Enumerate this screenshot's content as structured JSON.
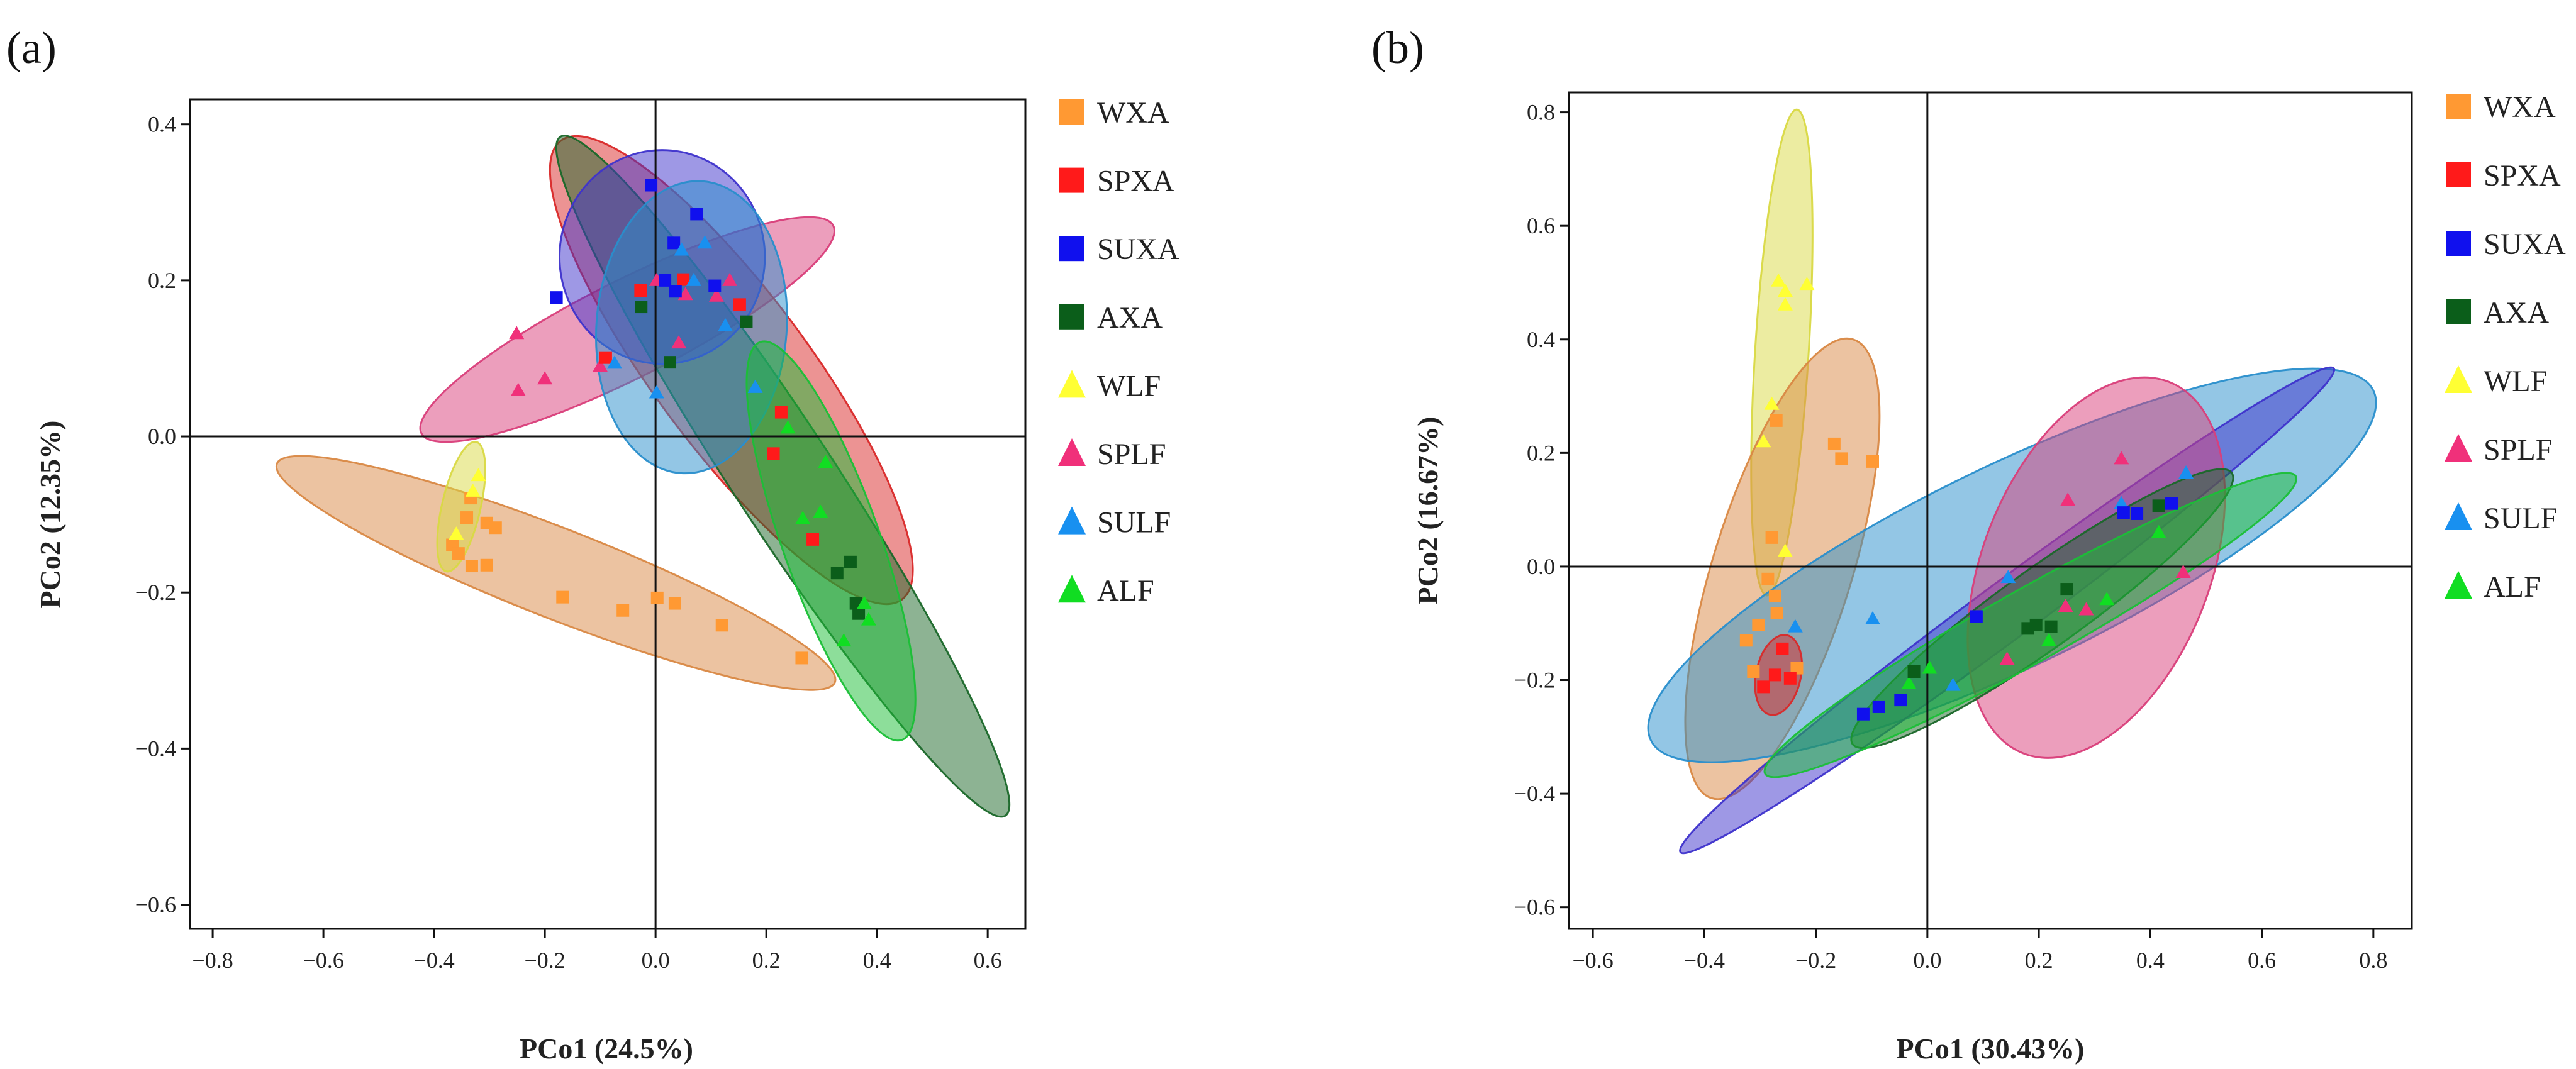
{
  "colors": {
    "WXA": "#ff9933",
    "SPXA": "#ff1a1a",
    "SUXA": "#1010ee",
    "AXA": "#0b5e1a",
    "WLF": "#ffff33",
    "SPLF": "#f0307a",
    "SULF": "#1890f0",
    "ALF": "#11dd22"
  },
  "ellipse_colors": {
    "WXA": "#ffa050",
    "SPXA": "#ff3030",
    "SUXA": "#4a3cf0",
    "AXA": "#1f7a30",
    "WLF": "#ffff50",
    "SPLF": "#ff4a90",
    "SULF": "#30a8f0",
    "ALF": "#20e040"
  },
  "chart_data": [
    {
      "type": "scatter",
      "panel_label": "(a)",
      "xlabel": "PCo1 (24.5%)",
      "ylabel": "PCo2 (12.35%)",
      "xlim": [
        -0.841,
        0.668
      ],
      "ylim": [
        -0.631,
        0.432
      ],
      "xticks": [
        -0.8,
        -0.6,
        -0.4,
        -0.2,
        0.0,
        0.2,
        0.4,
        0.6
      ],
      "xtick_labels": [
        "−0.8",
        "−0.6",
        "−0.4",
        "−0.2",
        "0.0",
        "0.2",
        "0.4",
        "0.6"
      ],
      "yticks": [
        -0.6,
        -0.4,
        -0.2,
        0.0,
        0.2,
        0.4
      ],
      "ytick_labels": [
        "−0.6",
        "−0.4",
        "−0.2",
        "0.0",
        "0.2",
        "0.4"
      ],
      "legend": [
        "WXA",
        "SPXA",
        "SUXA",
        "AXA",
        "WLF",
        "SPLF",
        "SULF",
        "ALF"
      ],
      "legend_position": "right-outside",
      "reference_lines": {
        "x": 0,
        "y": 0
      },
      "ellipses": [
        {
          "group": "WXA",
          "center": [
            -0.18,
            -0.175
          ],
          "major_vector": [
            0.504,
            -0.14
          ],
          "axis_ratio": 0.15
        },
        {
          "group": "WLF",
          "center": [
            -0.351,
            -0.09
          ],
          "major_vector": [
            0.027,
            0.083
          ],
          "axis_ratio": 0.29
        },
        {
          "group": "SPLF",
          "center": [
            -0.051,
            0.137
          ],
          "major_vector": [
            0.372,
            0.133
          ],
          "axis_ratio": 0.21
        },
        {
          "group": "SPXA",
          "center": [
            0.137,
            0.085
          ],
          "major_vector": [
            0.308,
            -0.294
          ],
          "axis_ratio": 0.27
        },
        {
          "group": "AXA",
          "center": [
            0.23,
            -0.051
          ],
          "major_vector": [
            0.402,
            -0.435
          ],
          "axis_ratio": 0.125
        },
        {
          "group": "SUXA",
          "center": [
            0.012,
            0.23
          ],
          "major_vector": [
            0.0,
            0.137
          ],
          "axis_ratio": 0.96
        },
        {
          "group": "SULF",
          "center": [
            0.065,
            0.14
          ],
          "major_vector": [
            0.02,
            0.187
          ],
          "axis_ratio": 0.65
        },
        {
          "group": "ALF",
          "center": [
            0.317,
            -0.134
          ],
          "major_vector": [
            0.128,
            -0.255
          ],
          "axis_ratio": 0.23
        }
      ],
      "series": [
        {
          "name": "WXA",
          "marker": "square",
          "points": [
            [
              -0.334,
              -0.079
            ],
            [
              -0.341,
              -0.104
            ],
            [
              -0.305,
              -0.111
            ],
            [
              -0.289,
              -0.117
            ],
            [
              -0.367,
              -0.139
            ],
            [
              -0.356,
              -0.15
            ],
            [
              -0.332,
              -0.166
            ],
            [
              -0.305,
              -0.165
            ],
            [
              -0.168,
              -0.206
            ],
            [
              -0.059,
              -0.223
            ],
            [
              0.003,
              -0.207
            ],
            [
              0.035,
              -0.214
            ],
            [
              0.12,
              -0.242
            ],
            [
              0.264,
              -0.284
            ]
          ]
        },
        {
          "name": "WLF",
          "marker": "triangle",
          "points": [
            [
              -0.32,
              -0.05
            ],
            [
              -0.33,
              -0.07
            ],
            [
              -0.36,
              -0.125
            ]
          ]
        },
        {
          "name": "SPLF",
          "marker": "triangle",
          "points": [
            [
              -0.251,
              0.132
            ],
            [
              -0.2,
              0.074
            ],
            [
              -0.248,
              0.059
            ],
            [
              -0.1,
              0.09
            ],
            [
              0.042,
              0.12
            ],
            [
              0.002,
              0.2
            ],
            [
              0.054,
              0.182
            ],
            [
              0.134,
              0.2
            ],
            [
              0.11,
              0.18
            ]
          ]
        },
        {
          "name": "SPXA",
          "marker": "square",
          "points": [
            [
              -0.027,
              0.187
            ],
            [
              0.05,
              0.201
            ],
            [
              0.152,
              0.169
            ],
            [
              -0.09,
              0.101
            ],
            [
              0.227,
              0.031
            ],
            [
              0.213,
              -0.022
            ],
            [
              0.284,
              -0.132
            ]
          ]
        },
        {
          "name": "SUXA",
          "marker": "square",
          "points": [
            [
              -0.008,
              0.322
            ],
            [
              0.074,
              0.285
            ],
            [
              0.033,
              0.248
            ],
            [
              -0.179,
              0.178
            ],
            [
              0.017,
              0.2
            ],
            [
              0.036,
              0.186
            ],
            [
              0.107,
              0.193
            ]
          ]
        },
        {
          "name": "AXA",
          "marker": "square",
          "points": [
            [
              -0.026,
              0.166
            ],
            [
              0.026,
              0.095
            ],
            [
              0.164,
              0.147
            ],
            [
              0.328,
              -0.175
            ],
            [
              0.352,
              -0.161
            ],
            [
              0.362,
              -0.214
            ],
            [
              0.367,
              -0.227
            ]
          ]
        },
        {
          "name": "SULF",
          "marker": "triangle",
          "points": [
            [
              0.047,
              0.239
            ],
            [
              0.089,
              0.248
            ],
            [
              0.069,
              0.2
            ],
            [
              0.126,
              0.142
            ],
            [
              0.002,
              0.056
            ],
            [
              0.18,
              0.063
            ],
            [
              -0.074,
              0.094
            ]
          ]
        },
        {
          "name": "ALF",
          "marker": "triangle",
          "points": [
            [
              0.239,
              0.011
            ],
            [
              0.307,
              -0.033
            ],
            [
              0.298,
              -0.097
            ],
            [
              0.266,
              -0.105
            ],
            [
              0.377,
              -0.214
            ],
            [
              0.34,
              -0.262
            ],
            [
              0.385,
              -0.235
            ]
          ]
        }
      ]
    },
    {
      "type": "scatter",
      "panel_label": "(b)",
      "xlabel": "PCo1 (30.43%)",
      "ylabel": "PCo2 (16.67%)",
      "xlim": [
        -0.643,
        0.869
      ],
      "ylim": [
        -0.638,
        0.835
      ],
      "xticks": [
        -0.6,
        -0.4,
        -0.2,
        0.0,
        0.2,
        0.4,
        0.6,
        0.8
      ],
      "xtick_labels": [
        "−0.6",
        "−0.4",
        "−0.2",
        "0.0",
        "0.2",
        "0.4",
        "0.6",
        "0.8"
      ],
      "yticks": [
        -0.6,
        -0.4,
        -0.2,
        0.0,
        0.2,
        0.4,
        0.6,
        0.8
      ],
      "ytick_labels": [
        "−0.6",
        "−0.4",
        "−0.2",
        "0.0",
        "0.2",
        "0.4",
        "0.6",
        "0.8"
      ],
      "legend": [
        "WXA",
        "SPXA",
        "SUXA",
        "AXA",
        "WLF",
        "SPLF",
        "SULF",
        "ALF"
      ],
      "legend_position": "right-outside",
      "reference_lines": {
        "x": 0,
        "y": 0
      },
      "ellipses": [
        {
          "group": "WLF",
          "center": [
            -0.261,
            0.377
          ],
          "major_vector": [
            0.027,
            0.428
          ],
          "axis_ratio": 0.11
        },
        {
          "group": "WXA",
          "center": [
            -0.26,
            -0.004
          ],
          "major_vector": [
            0.127,
            0.404
          ],
          "axis_ratio": 0.29
        },
        {
          "group": "SULF",
          "center": [
            0.152,
            0.002
          ],
          "major_vector": [
            0.648,
            0.308
          ],
          "axis_ratio": 0.25
        },
        {
          "group": "SUXA",
          "center": [
            0.143,
            -0.077
          ],
          "major_vector": [
            0.586,
            0.426
          ],
          "axis_ratio": 0.07
        },
        {
          "group": "SPLF",
          "center": [
            0.303,
            -0.002
          ],
          "major_vector": [
            0.131,
            0.327
          ],
          "axis_ratio": 0.57
        },
        {
          "group": "AXA",
          "center": [
            0.206,
            -0.074
          ],
          "major_vector": [
            0.34,
            0.239
          ],
          "axis_ratio": 0.17
        },
        {
          "group": "ALF",
          "center": [
            0.185,
            -0.103
          ],
          "major_vector": [
            0.476,
            0.262
          ],
          "axis_ratio": 0.12
        },
        {
          "group": "SPXA",
          "center": [
            -0.267,
            -0.191
          ],
          "major_vector": [
            0.015,
            0.07
          ],
          "axis_ratio": 0.55
        }
      ],
      "series": [
        {
          "name": "WXA",
          "marker": "square",
          "points": [
            [
              -0.271,
              0.257
            ],
            [
              -0.167,
              0.216
            ],
            [
              -0.154,
              0.19
            ],
            [
              -0.098,
              0.185
            ],
            [
              -0.279,
              0.051
            ],
            [
              -0.286,
              -0.022
            ],
            [
              -0.273,
              -0.052
            ],
            [
              -0.27,
              -0.082
            ],
            [
              -0.303,
              -0.103
            ],
            [
              -0.325,
              -0.13
            ],
            [
              -0.312,
              -0.185
            ],
            [
              -0.234,
              -0.179
            ]
          ]
        },
        {
          "name": "WLF",
          "marker": "triangle",
          "points": [
            [
              -0.267,
              0.503
            ],
            [
              -0.255,
              0.485
            ],
            [
              -0.255,
              0.461
            ],
            [
              -0.216,
              0.497
            ],
            [
              -0.279,
              0.286
            ],
            [
              -0.294,
              0.22
            ],
            [
              -0.255,
              0.027
            ]
          ]
        },
        {
          "name": "SPLF",
          "marker": "triangle",
          "points": [
            [
              0.348,
              0.19
            ],
            [
              0.252,
              0.117
            ],
            [
              0.248,
              -0.07
            ],
            [
              0.285,
              -0.076
            ],
            [
              0.143,
              -0.163
            ],
            [
              0.459,
              -0.01
            ]
          ]
        },
        {
          "name": "SULF",
          "marker": "triangle",
          "points": [
            [
              0.464,
              0.165
            ],
            [
              0.348,
              0.111
            ],
            [
              0.145,
              -0.019
            ],
            [
              -0.098,
              -0.092
            ],
            [
              -0.237,
              -0.106
            ],
            [
              0.046,
              -0.209
            ]
          ]
        },
        {
          "name": "ALF",
          "marker": "triangle",
          "points": [
            [
              0.415,
              0.06
            ],
            [
              0.322,
              -0.058
            ],
            [
              0.218,
              -0.13
            ],
            [
              0.004,
              -0.179
            ],
            [
              -0.033,
              -0.206
            ]
          ]
        },
        {
          "name": "AXA",
          "marker": "square",
          "points": [
            [
              -0.024,
              -0.185
            ],
            [
              0.18,
              -0.109
            ],
            [
              0.195,
              -0.103
            ],
            [
              0.222,
              -0.106
            ],
            [
              0.25,
              -0.04
            ],
            [
              0.415,
              0.107
            ]
          ]
        },
        {
          "name": "SUXA",
          "marker": "square",
          "points": [
            [
              -0.115,
              -0.26
            ],
            [
              -0.087,
              -0.247
            ],
            [
              -0.048,
              -0.235
            ],
            [
              0.088,
              -0.088
            ],
            [
              0.352,
              0.095
            ],
            [
              0.376,
              0.093
            ],
            [
              0.438,
              0.111
            ]
          ]
        },
        {
          "name": "SPXA",
          "marker": "square",
          "points": [
            [
              -0.26,
              -0.145
            ],
            [
              -0.273,
              -0.191
            ],
            [
              -0.246,
              -0.197
            ],
            [
              -0.294,
              -0.212
            ]
          ]
        }
      ]
    }
  ]
}
